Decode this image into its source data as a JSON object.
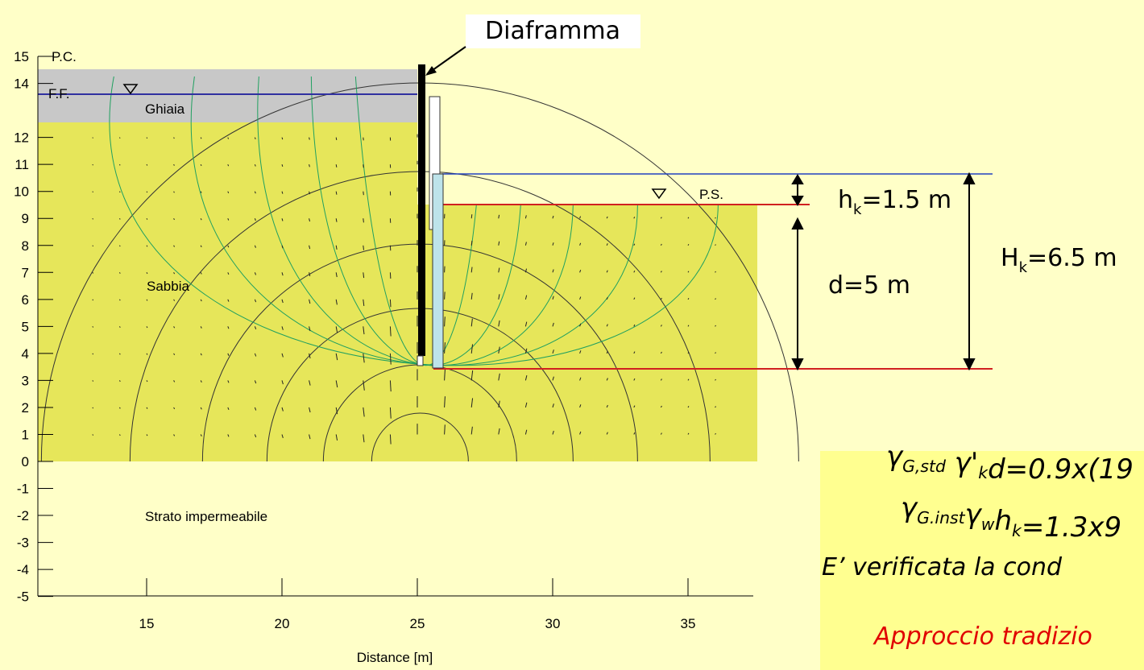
{
  "callout": "Diaframma",
  "axes": {
    "x_label": "Distance [m]",
    "xticks": [
      15,
      20,
      25,
      30,
      35
    ],
    "yticks": [
      15,
      14,
      12,
      11,
      10,
      9,
      8,
      7,
      6,
      5,
      4,
      3,
      2,
      1,
      0,
      -1,
      -2,
      -3,
      -4,
      -5
    ]
  },
  "labels": {
    "ground": "P.C.",
    "excavation_bottom": "F.F.",
    "gravel": "Ghiaia",
    "sand": "Sabbia",
    "impermeable": "Strato impermeabile",
    "water_level": "P.S."
  },
  "dimensions": [
    {
      "base": "h",
      "sub": "k",
      "rest": "=1.5 m"
    },
    {
      "base": "d=5 m"
    },
    {
      "base": "H",
      "sub": "k",
      "rest": "=6.5 m"
    }
  ],
  "notes": [
    [
      {
        "base": "γ",
        "sub": "G,std"
      },
      {
        "base": " γ'",
        "sub": "k"
      },
      {
        "base": "d=0.9x(19"
      }
    ],
    [
      {
        "base": "γ",
        "sub": "G.inst"
      },
      {
        "base": "γ",
        "sub": "w"
      },
      {
        "base": "h",
        "sub": "k"
      },
      {
        "base": "=1.3x9"
      }
    ],
    [
      {
        "base": "E’ verificata la cond"
      }
    ],
    [
      {
        "base": "Approccio tradizio"
      }
    ]
  ]
}
